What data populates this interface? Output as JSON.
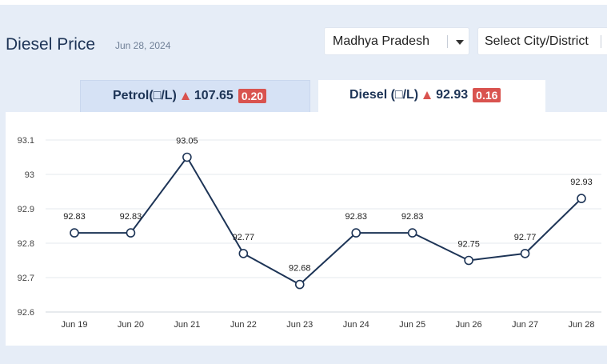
{
  "header": {
    "title": "Diesel Price",
    "date": "Jun 28, 2024"
  },
  "filters": {
    "state_value": "Madhya Pradesh",
    "city_placeholder": "Select City/District"
  },
  "tabs": [
    {
      "name": "Petrol(□/L)",
      "price": "107.65",
      "change": "0.20",
      "active": false
    },
    {
      "name": "Diesel (□/L)",
      "price": "92.93",
      "change": "0.16",
      "active": true
    }
  ],
  "colors": {
    "line": "#1d3456",
    "change_up": "#d9534f",
    "active_tab_bg": "#ffffff",
    "inactive_tab_bg": "#d6e2f5"
  },
  "chart_data": {
    "type": "line",
    "categories": [
      "Jun 19",
      "Jun 20",
      "Jun 21",
      "Jun 22",
      "Jun 23",
      "Jun 24",
      "Jun 25",
      "Jun 26",
      "Jun 27",
      "Jun 28"
    ],
    "values": [
      92.83,
      92.83,
      93.05,
      92.77,
      92.68,
      92.83,
      92.83,
      92.75,
      92.77,
      92.93
    ],
    "data_labels": [
      "92.83",
      "92.83",
      "93.05",
      "92.77",
      "92.68",
      "92.83",
      "92.83",
      "92.75",
      "92.77",
      "92.93"
    ],
    "yticks": [
      "92.6",
      "92.7",
      "92.8",
      "92.9",
      "93",
      "93.1"
    ],
    "ylim": [
      92.6,
      93.1
    ],
    "grid": true,
    "title": "",
    "xlabel": "",
    "ylabel": ""
  }
}
